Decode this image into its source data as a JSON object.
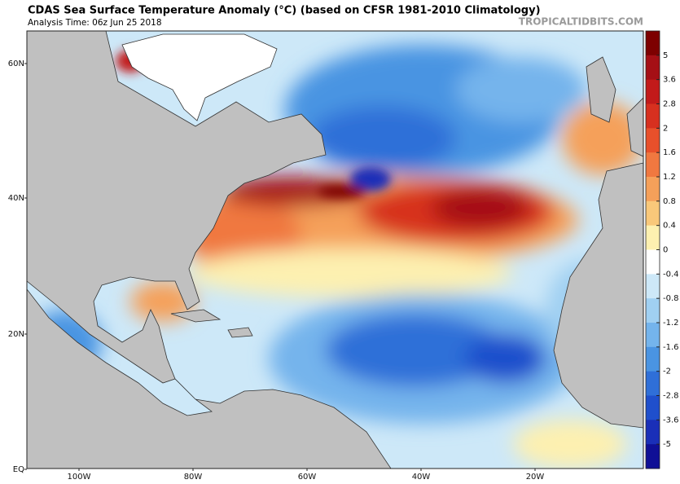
{
  "header": {
    "title": "CDAS Sea Surface Temperature Anomaly (°C) (based on CFSR 1981-2010 Climatology)",
    "subtitle": "Analysis Time: 06z Jun 25 2018",
    "watermark": "TROPICALTIDBITS.COM"
  },
  "map": {
    "lat_labels": [
      "60N",
      "40N",
      "20N",
      "EQ"
    ],
    "lon_labels": [
      "100W",
      "80W",
      "60W",
      "40W",
      "20W"
    ]
  },
  "colorbar": {
    "ticks": [
      5,
      3.6,
      2.8,
      2,
      1.6,
      1.2,
      0.8,
      0.4,
      0,
      -0.4,
      -0.8,
      -1.2,
      -1.6,
      -2,
      -2.8,
      -3.6,
      -5
    ],
    "colors": [
      "#7d0000",
      "#a50f15",
      "#c21a1a",
      "#d7301f",
      "#e8502b",
      "#f07840",
      "#f5a05a",
      "#f9c87a",
      "#fdf0b0",
      "#ffffff",
      "#cde8f8",
      "#a0d0f2",
      "#74b4ec",
      "#4a94e2",
      "#2f6fd8",
      "#1f4fcc",
      "#1a2fb8",
      "#0f0f96"
    ]
  }
}
